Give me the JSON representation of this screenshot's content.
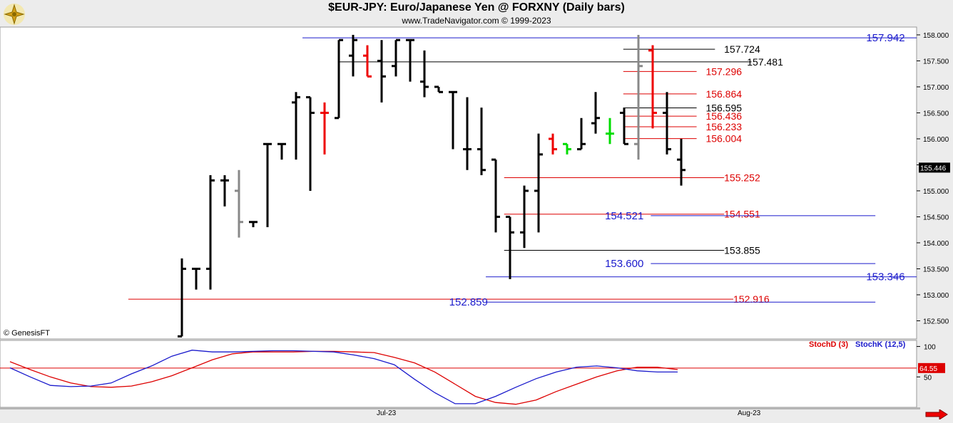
{
  "header": {
    "title": "$EUR-JPY:  Euro/Japanese Yen @ FORXNY  (Daily bars)",
    "subtitle": "www.TradeNavigator.com © 1999-2023"
  },
  "footer_copyright": "© GenesisFT",
  "colors": {
    "bull": "#000000",
    "bear_red": "#ee0000",
    "green": "#00dd00",
    "gray": "#888888",
    "blue_line": "#1a1acc",
    "red_line": "#dd0000",
    "black_line": "#000000"
  },
  "chart_data": [
    {
      "type": "ohlc",
      "title": "$EUR-JPY:  Euro/Japanese Yen @ FORXNY  (Daily bars)",
      "y_ticks": [
        "158.000",
        "157.500",
        "157.000",
        "156.500",
        "156.000",
        "155.500",
        "155.000",
        "154.500",
        "154.000",
        "153.500",
        "153.000",
        "152.500"
      ],
      "ylim": [
        152.15,
        158.15
      ],
      "last_price": "155.446",
      "x_labels": [
        "Jul-23",
        "Aug-23"
      ],
      "bars": [
        {
          "o": 152.2,
          "h": 153.7,
          "l": 152.2,
          "c": 153.5,
          "col": "black"
        },
        {
          "o": 153.5,
          "h": 153.5,
          "l": 153.1,
          "c": 153.5,
          "col": "black"
        },
        {
          "o": 153.5,
          "h": 155.3,
          "l": 153.1,
          "c": 155.2,
          "col": "black"
        },
        {
          "o": 155.2,
          "h": 155.3,
          "l": 154.7,
          "c": 155.2,
          "col": "black"
        },
        {
          "o": 155.0,
          "h": 155.4,
          "l": 154.1,
          "c": 154.4,
          "col": "gray"
        },
        {
          "o": 154.4,
          "h": 154.4,
          "l": 154.3,
          "c": 154.4,
          "col": "black"
        },
        {
          "o": 155.9,
          "h": 155.9,
          "l": 154.3,
          "c": 155.9,
          "col": "black"
        },
        {
          "o": 155.9,
          "h": 155.9,
          "l": 155.6,
          "c": 155.9,
          "col": "black"
        },
        {
          "o": 156.7,
          "h": 156.9,
          "l": 155.6,
          "c": 156.8,
          "col": "black"
        },
        {
          "o": 156.8,
          "h": 156.8,
          "l": 155.0,
          "c": 156.5,
          "col": "black"
        },
        {
          "o": 156.5,
          "h": 156.7,
          "l": 155.7,
          "c": 156.5,
          "col": "red"
        },
        {
          "o": 156.4,
          "h": 157.9,
          "l": 156.4,
          "c": 157.9,
          "col": "black"
        },
        {
          "o": 157.6,
          "h": 158.0,
          "l": 157.2,
          "c": 157.9,
          "col": "black"
        },
        {
          "o": 157.6,
          "h": 157.8,
          "l": 157.2,
          "c": 157.2,
          "col": "red"
        },
        {
          "o": 157.5,
          "h": 157.9,
          "l": 156.7,
          "c": 157.2,
          "col": "black"
        },
        {
          "o": 157.4,
          "h": 157.9,
          "l": 157.2,
          "c": 157.9,
          "col": "black"
        },
        {
          "o": 157.9,
          "h": 157.9,
          "l": 157.1,
          "c": 157.9,
          "col": "black"
        },
        {
          "o": 157.1,
          "h": 157.7,
          "l": 156.8,
          "c": 157.0,
          "col": "black"
        },
        {
          "o": 157.0,
          "h": 157.0,
          "l": 156.9,
          "c": 156.9,
          "col": "black"
        },
        {
          "o": 156.9,
          "h": 156.9,
          "l": 155.8,
          "c": 156.9,
          "col": "black"
        },
        {
          "o": 155.8,
          "h": 156.8,
          "l": 155.4,
          "c": 155.8,
          "col": "black"
        },
        {
          "o": 155.8,
          "h": 156.6,
          "l": 155.3,
          "c": 155.4,
          "col": "black"
        },
        {
          "o": 155.6,
          "h": 155.6,
          "l": 154.2,
          "c": 154.5,
          "col": "black"
        },
        {
          "o": 154.5,
          "h": 154.5,
          "l": 153.3,
          "c": 154.2,
          "col": "black"
        },
        {
          "o": 154.2,
          "h": 155.1,
          "l": 153.9,
          "c": 155.0,
          "col": "black"
        },
        {
          "o": 155.0,
          "h": 156.1,
          "l": 154.2,
          "c": 155.7,
          "col": "black"
        },
        {
          "o": 156.0,
          "h": 156.1,
          "l": 155.7,
          "c": 155.8,
          "col": "red"
        },
        {
          "o": 155.9,
          "h": 155.9,
          "l": 155.7,
          "c": 155.8,
          "col": "green"
        },
        {
          "o": 155.8,
          "h": 156.4,
          "l": 155.8,
          "c": 155.9,
          "col": "black"
        },
        {
          "o": 156.3,
          "h": 156.9,
          "l": 156.1,
          "c": 156.4,
          "col": "black"
        },
        {
          "o": 156.1,
          "h": 156.4,
          "l": 155.9,
          "c": 156.1,
          "col": "green"
        },
        {
          "o": 156.5,
          "h": 156.6,
          "l": 155.9,
          "c": 155.9,
          "col": "black"
        },
        {
          "o": 155.9,
          "h": 158.0,
          "l": 155.6,
          "c": 157.4,
          "col": "gray"
        },
        {
          "o": 157.7,
          "h": 157.8,
          "l": 156.2,
          "c": 156.5,
          "col": "red"
        },
        {
          "o": 156.5,
          "h": 156.9,
          "l": 155.7,
          "c": 155.8,
          "col": "black"
        },
        {
          "o": 155.6,
          "h": 156.0,
          "l": 155.1,
          "c": 155.4,
          "col": "black"
        }
      ],
      "levels": [
        {
          "value": 157.942,
          "label": "157.942",
          "color": "blue",
          "x1": 0.33,
          "x2": 1.0,
          "lx": 0.945,
          "size": 15
        },
        {
          "value": 157.724,
          "label": "157.724",
          "color": "black",
          "x1": 0.68,
          "x2": 0.78,
          "lx": 0.79,
          "size": 14
        },
        {
          "value": 157.481,
          "label": "157.481",
          "color": "black",
          "x1": 0.37,
          "x2": 0.82,
          "lx": 0.815,
          "size": 14
        },
        {
          "value": 157.296,
          "label": "157.296",
          "color": "red",
          "x1": 0.68,
          "x2": 0.76,
          "lx": 0.77,
          "size": 14
        },
        {
          "value": 156.864,
          "label": "156.864",
          "color": "red",
          "x1": 0.68,
          "x2": 0.76,
          "lx": 0.77,
          "size": 14
        },
        {
          "value": 156.595,
          "label": "156.595",
          "color": "black",
          "x1": 0.68,
          "x2": 0.76,
          "lx": 0.77,
          "size": 14
        },
        {
          "value": 156.436,
          "label": "156.436",
          "color": "red",
          "x1": 0.68,
          "x2": 0.76,
          "lx": 0.77,
          "size": 14
        },
        {
          "value": 156.233,
          "label": "156.233",
          "color": "red",
          "x1": 0.68,
          "x2": 0.76,
          "lx": 0.77,
          "size": 14
        },
        {
          "value": 156.004,
          "label": "156.004",
          "color": "red",
          "x1": 0.68,
          "x2": 0.76,
          "lx": 0.77,
          "size": 14
        },
        {
          "value": 155.252,
          "label": "155.252",
          "color": "red",
          "x1": 0.55,
          "x2": 0.79,
          "lx": 0.79,
          "size": 14
        },
        {
          "value": 154.551,
          "label": "154.551",
          "color": "red",
          "x1": 0.55,
          "x2": 0.79,
          "lx": 0.79,
          "size": 14
        },
        {
          "value": 154.521,
          "label": "154.521",
          "color": "blue",
          "x1": 0.71,
          "x2": 0.955,
          "lx": 0.66,
          "size": 15
        },
        {
          "value": 153.855,
          "label": "153.855",
          "color": "black",
          "x1": 0.55,
          "x2": 0.79,
          "lx": 0.79,
          "size": 14
        },
        {
          "value": 153.6,
          "label": "153.600",
          "color": "blue",
          "x1": 0.71,
          "x2": 0.955,
          "lx": 0.66,
          "size": 15
        },
        {
          "value": 153.346,
          "label": "153.346",
          "color": "blue",
          "x1": 0.53,
          "x2": 1.0,
          "lx": 0.945,
          "size": 15
        },
        {
          "value": 152.916,
          "label": "152.916",
          "color": "red",
          "x1": 0.14,
          "x2": 0.8,
          "lx": 0.8,
          "size": 14
        },
        {
          "value": 152.859,
          "label": "152.859",
          "color": "blue",
          "x1": 0.53,
          "x2": 0.955,
          "lx": 0.49,
          "size": 15
        }
      ]
    },
    {
      "type": "line",
      "legend": [
        "StochD (3)",
        "StochK (12,5)"
      ],
      "y_ticks": [
        "100",
        "50"
      ],
      "ylim": [
        0,
        110
      ],
      "last_value": "64.55",
      "series": [
        {
          "name": "StochD (3)",
          "color": "red",
          "values": [
            75,
            62,
            50,
            40,
            34,
            33,
            35,
            42,
            52,
            65,
            78,
            88,
            91,
            91,
            91,
            92,
            92,
            91,
            90,
            82,
            73,
            58,
            38,
            18,
            8,
            5,
            12,
            26,
            38,
            50,
            60,
            66,
            66,
            62
          ]
        },
        {
          "name": "StochK (12,5)",
          "color": "blue",
          "values": [
            65,
            50,
            36,
            34,
            35,
            40,
            55,
            68,
            84,
            94,
            91,
            91,
            92,
            93,
            93,
            92,
            91,
            86,
            80,
            70,
            46,
            24,
            6,
            6,
            18,
            33,
            47,
            58,
            66,
            68,
            65,
            60,
            58,
            58
          ]
        }
      ]
    }
  ]
}
